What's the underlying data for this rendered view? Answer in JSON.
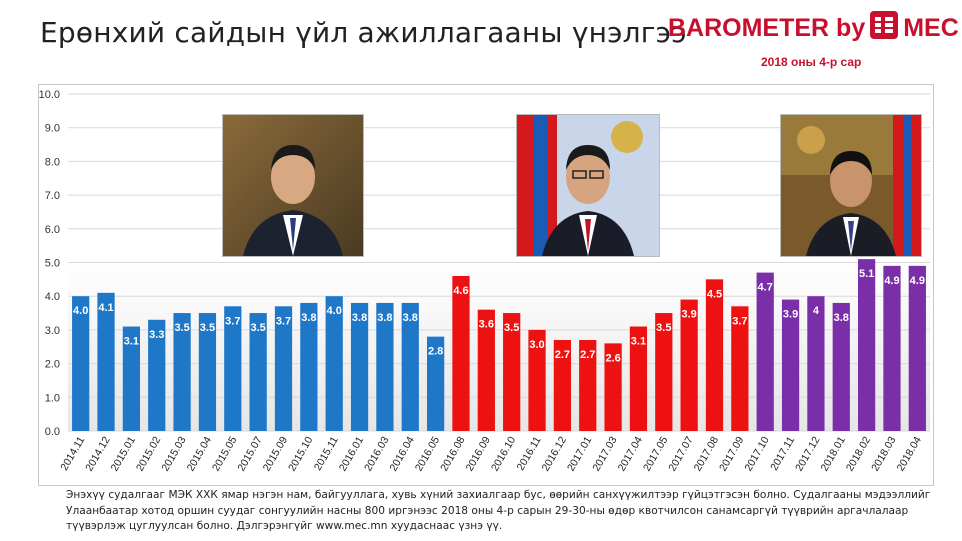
{
  "header": {
    "title": "Ерөнхий сайдын үйл ажиллагааны үнэлгээ",
    "brand_left": "BAROMETER by",
    "brand_right": "MEC",
    "subtitle": "2018 оны 4-р сар"
  },
  "footnote": "Энэхүү судалгааг МЭК ХХК ямар нэгэн нам, байгууллага, хувь хүний захиалгаар бус, өөрийн санхүүжилтээр гүйцэтгэсэн болно. Судалгааны мэдээллийг Улаанбаатар хотод оршин суудаг сонгуулийн насны 800 иргэнээс 2018 оны 4-р сарын 29-30-ны өдөр квотчилсон санамсаргүй түүврийн аргачлалаар түүвэрлэж цуглуулсан болно. Дэлгэрэнгүйг www.mec.mn хуудаснаас үзнэ үү.",
  "colors": {
    "blue": "#1f77c8",
    "red": "#ee1111",
    "purple": "#7a2fa8",
    "brand": "#c8102e"
  },
  "portraits": [
    {
      "icon": "portrait-photo-1"
    },
    {
      "icon": "portrait-photo-2"
    },
    {
      "icon": "portrait-photo-3"
    }
  ],
  "chart_data": {
    "type": "bar",
    "ylim": [
      0,
      10
    ],
    "yticks": [
      "0.0",
      "1.0",
      "2.0",
      "3.0",
      "4.0",
      "5.0",
      "6.0",
      "7.0",
      "8.0",
      "9.0",
      "10.0"
    ],
    "grid": true,
    "categories": [
      "2014.11",
      "2014.12",
      "2015.01",
      "2015.02",
      "2015.03",
      "2015.04",
      "2015.05",
      "2015.07",
      "2015.09",
      "2015.10",
      "2015.11",
      "2016.01",
      "2016.03",
      "2016.04",
      "2016.05",
      "2016.08",
      "2016.09",
      "2016.10",
      "2016.11",
      "2016.12",
      "2017.01",
      "2017.03",
      "2017.04",
      "2017.05",
      "2017.07",
      "2017.08",
      "2017.09",
      "2017.10",
      "2017.11",
      "2017.12",
      "2018.01",
      "2018.02",
      "2018.03",
      "2018.04"
    ],
    "values": [
      4.0,
      4.1,
      3.1,
      3.3,
      3.5,
      3.5,
      3.7,
      3.5,
      3.7,
      3.8,
      4.0,
      3.8,
      3.8,
      3.8,
      2.8,
      4.6,
      3.6,
      3.5,
      3.0,
      2.7,
      2.7,
      2.6,
      3.1,
      3.5,
      3.9,
      4.5,
      3.7,
      4.7,
      3.9,
      4.0,
      3.8,
      5.1,
      4.9,
      4.9
    ],
    "labels": [
      "4.0",
      "4.1",
      "3.1",
      "3.3",
      "3.5",
      "3.5",
      "3.7",
      "3.5",
      "3.7",
      "3.8",
      "4.0",
      "3.8",
      "3.8",
      "3.8",
      "2.8",
      "4.6",
      "3.6",
      "3.5",
      "3.0",
      "2.7",
      "2.7",
      "2.6",
      "3.1",
      "3.5",
      "3.9",
      "4.5",
      "3.7",
      "4.7",
      "3.9",
      "4",
      "3.8",
      "5.1",
      "4.9",
      "4.9"
    ],
    "color_groups": [
      "blue",
      "blue",
      "blue",
      "blue",
      "blue",
      "blue",
      "blue",
      "blue",
      "blue",
      "blue",
      "blue",
      "blue",
      "blue",
      "blue",
      "blue",
      "red",
      "red",
      "red",
      "red",
      "red",
      "red",
      "red",
      "red",
      "red",
      "red",
      "red",
      "red",
      "purple",
      "purple",
      "purple",
      "purple",
      "purple",
      "purple",
      "purple"
    ]
  }
}
